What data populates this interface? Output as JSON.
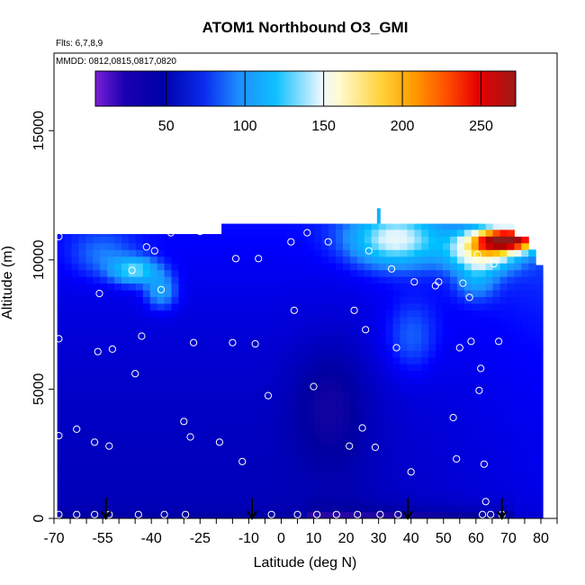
{
  "chart_data": {
    "type": "heatmap",
    "title": "ATOM1 Northbound O3_GMI",
    "notes": [
      "Flts: 6,7,8,9",
      "MMDD: 0812,0815,0817,0820"
    ],
    "xlabel": "Latitude (deg N)",
    "ylabel": "Altitude (m)",
    "xlim": [
      -70,
      85
    ],
    "ylim": [
      0,
      18000
    ],
    "xticks": [
      -70,
      -55,
      -40,
      -25,
      -10,
      0,
      10,
      20,
      30,
      40,
      50,
      60,
      70,
      80
    ],
    "xtick_labels": [
      "-70",
      "-55",
      "-40",
      "-25",
      "-10",
      "0",
      "10",
      "20",
      "30",
      "40",
      "50",
      "60",
      "70",
      "80"
    ],
    "yticks": [
      0,
      5000,
      10000,
      15000
    ],
    "ytick_labels": [
      "0",
      "5000",
      "10000",
      "15000"
    ],
    "colorbar": {
      "range": [
        5,
        272
      ],
      "ticks": [
        50,
        100,
        150,
        200,
        250
      ],
      "tick_labels": [
        "50",
        "100",
        "150",
        "200",
        "250"
      ],
      "colors": [
        "#6a0dad",
        "#0000a0",
        "#0000ff",
        "#1e90ff",
        "#00bfff",
        "#e0f4ff",
        "#ffffe0",
        "#ffd700",
        "#ff8c00",
        "#ff0000",
        "#b00000",
        "#8b1a1a"
      ]
    },
    "grid": false,
    "legend": "colorbar at top inside plot",
    "arrows_latitude": [
      -54,
      -9,
      39,
      68
    ],
    "profile_points": [
      [
        -68.5,
        10900
      ],
      [
        -68.5,
        6950
      ],
      [
        -68.5,
        3200
      ],
      [
        -68.5,
        150
      ],
      [
        -63,
        3450
      ],
      [
        -63,
        150
      ],
      [
        -57.5,
        2950
      ],
      [
        -57.5,
        150
      ],
      [
        -56.5,
        6450
      ],
      [
        -56,
        8700
      ],
      [
        -53,
        2800
      ],
      [
        -53,
        150
      ],
      [
        -52,
        6550
      ],
      [
        -46,
        9600
      ],
      [
        -45,
        5600
      ],
      [
        -44,
        150
      ],
      [
        -43,
        7050
      ],
      [
        -41.5,
        10500
      ],
      [
        -39,
        10350
      ],
      [
        -37,
        8850
      ],
      [
        -36,
        150
      ],
      [
        -34,
        11050
      ],
      [
        -30,
        3750
      ],
      [
        -29.5,
        150
      ],
      [
        -28,
        3150
      ],
      [
        -27,
        6800
      ],
      [
        -25,
        11100
      ],
      [
        -21,
        11250
      ],
      [
        -19,
        2950
      ],
      [
        -15,
        6800
      ],
      [
        -14,
        10050
      ],
      [
        -12,
        2200
      ],
      [
        -8,
        6750
      ],
      [
        -7,
        10050
      ],
      [
        -4,
        4750
      ],
      [
        -3,
        150
      ],
      [
        3,
        10700
      ],
      [
        4,
        8050
      ],
      [
        5,
        150
      ],
      [
        8,
        11050
      ],
      [
        10,
        5100
      ],
      [
        11,
        150
      ],
      [
        14.5,
        10700
      ],
      [
        17,
        150
      ],
      [
        21,
        2800
      ],
      [
        22.5,
        8050
      ],
      [
        23.5,
        150
      ],
      [
        25,
        3500
      ],
      [
        26,
        7300
      ],
      [
        27,
        10350
      ],
      [
        29,
        2750
      ],
      [
        30.5,
        150
      ],
      [
        34,
        9650
      ],
      [
        35.5,
        6600
      ],
      [
        36,
        150
      ],
      [
        40,
        1800
      ],
      [
        41,
        9150
      ],
      [
        47.5,
        9000
      ],
      [
        48.5,
        9150
      ],
      [
        53,
        3900
      ],
      [
        54,
        2300
      ],
      [
        55,
        6600
      ],
      [
        56,
        9100
      ],
      [
        58,
        8550
      ],
      [
        58.5,
        6850
      ],
      [
        60.5,
        10200
      ],
      [
        61,
        4950
      ],
      [
        61.5,
        5800
      ],
      [
        62.5,
        2100
      ],
      [
        63,
        650
      ],
      [
        62,
        150
      ],
      [
        64.5,
        150
      ],
      [
        65.5,
        9850
      ],
      [
        67,
        6850
      ],
      [
        68,
        150
      ]
    ]
  }
}
